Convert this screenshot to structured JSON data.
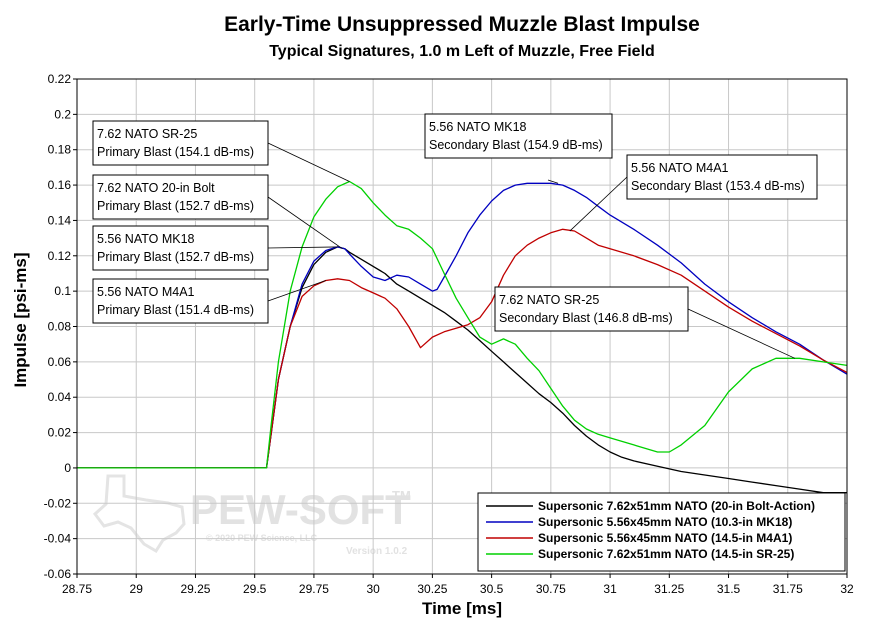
{
  "chart_data": {
    "type": "line",
    "title": "Early-Time Unsuppressed Muzzle Blast Impulse",
    "subtitle": "Typical Signatures, 1.0 m Left of Muzzle, Free Field",
    "xlabel": "Time [ms]",
    "ylabel": "Impulse [psi-ms]",
    "xlim": [
      28.75,
      32
    ],
    "ylim": [
      -0.06,
      0.22
    ],
    "x_ticks": [
      "28.75",
      "29",
      "29.25",
      "29.5",
      "29.75",
      "30",
      "30.25",
      "30.5",
      "30.75",
      "31",
      "31.25",
      "31.5",
      "31.75",
      "32"
    ],
    "y_ticks": [
      "0.22",
      "0.2",
      "0.18",
      "0.16",
      "0.14",
      "0.12",
      "0.1",
      "0.08",
      "0.06",
      "0.04",
      "0.02",
      "0",
      "-0.02",
      "-0.04",
      "-0.06"
    ],
    "grid": true,
    "legend_position": "bottom-right",
    "series": [
      {
        "name": "Supersonic 7.62x51mm NATO (20-in Bolt-Action)",
        "color": "#000000",
        "x": [
          28.75,
          29.55,
          29.57,
          29.6,
          29.65,
          29.7,
          29.75,
          29.8,
          29.85,
          29.88,
          29.9,
          29.95,
          30.0,
          30.05,
          30.1,
          30.15,
          30.2,
          30.25,
          30.3,
          30.35,
          30.4,
          30.45,
          30.5,
          30.55,
          30.6,
          30.65,
          30.7,
          30.75,
          30.8,
          30.85,
          30.9,
          30.95,
          31.0,
          31.05,
          31.1,
          31.2,
          31.3,
          31.4,
          31.5,
          31.6,
          31.7,
          31.8,
          31.9,
          32.0
        ],
        "y": [
          0,
          0,
          0.02,
          0.05,
          0.08,
          0.102,
          0.115,
          0.122,
          0.125,
          0.124,
          0.122,
          0.118,
          0.114,
          0.11,
          0.104,
          0.1,
          0.096,
          0.092,
          0.088,
          0.083,
          0.078,
          0.072,
          0.066,
          0.06,
          0.054,
          0.048,
          0.042,
          0.037,
          0.031,
          0.024,
          0.018,
          0.013,
          0.009,
          0.006,
          0.004,
          0.001,
          -0.002,
          -0.004,
          -0.006,
          -0.008,
          -0.01,
          -0.012,
          -0.014,
          -0.014
        ]
      },
      {
        "name": "Supersonic 5.56x45mm NATO (10.3-in MK18)",
        "color": "#0000c0",
        "x": [
          28.75,
          29.55,
          29.57,
          29.6,
          29.65,
          29.7,
          29.75,
          29.8,
          29.85,
          29.88,
          29.9,
          29.95,
          30.0,
          30.05,
          30.1,
          30.15,
          30.2,
          30.25,
          30.27,
          30.3,
          30.35,
          30.4,
          30.45,
          30.5,
          30.55,
          30.6,
          30.65,
          30.7,
          30.75,
          30.8,
          30.85,
          30.9,
          30.95,
          31.0,
          31.1,
          31.2,
          31.3,
          31.4,
          31.5,
          31.6,
          31.7,
          31.8,
          31.9,
          32.0
        ],
        "y": [
          0,
          0,
          0.02,
          0.05,
          0.08,
          0.104,
          0.117,
          0.123,
          0.125,
          0.124,
          0.121,
          0.114,
          0.108,
          0.106,
          0.109,
          0.108,
          0.104,
          0.1,
          0.101,
          0.108,
          0.12,
          0.133,
          0.143,
          0.151,
          0.157,
          0.16,
          0.161,
          0.161,
          0.161,
          0.16,
          0.157,
          0.153,
          0.148,
          0.143,
          0.135,
          0.126,
          0.116,
          0.104,
          0.094,
          0.085,
          0.077,
          0.07,
          0.061,
          0.053
        ]
      },
      {
        "name": "Supersonic 5.56x45mm NATO (14.5-in M4A1)",
        "color": "#c00000",
        "x": [
          28.75,
          29.55,
          29.57,
          29.6,
          29.65,
          29.7,
          29.75,
          29.8,
          29.85,
          29.9,
          29.95,
          30.0,
          30.05,
          30.1,
          30.15,
          30.2,
          30.25,
          30.3,
          30.35,
          30.4,
          30.45,
          30.5,
          30.55,
          30.6,
          30.65,
          30.7,
          30.75,
          30.8,
          30.85,
          30.9,
          30.95,
          31.0,
          31.1,
          31.2,
          31.3,
          31.4,
          31.5,
          31.6,
          31.7,
          31.8,
          31.9,
          32.0
        ],
        "y": [
          0,
          0,
          0.02,
          0.05,
          0.08,
          0.097,
          0.103,
          0.106,
          0.107,
          0.106,
          0.102,
          0.099,
          0.096,
          0.09,
          0.08,
          0.068,
          0.074,
          0.077,
          0.079,
          0.081,
          0.085,
          0.094,
          0.109,
          0.12,
          0.126,
          0.13,
          0.133,
          0.135,
          0.134,
          0.13,
          0.126,
          0.124,
          0.12,
          0.115,
          0.109,
          0.1,
          0.091,
          0.083,
          0.076,
          0.069,
          0.061,
          0.054
        ]
      },
      {
        "name": "Supersonic 7.62x51mm NATO (14.5-in SR-25)",
        "color": "#00d000",
        "x": [
          28.75,
          29.55,
          29.57,
          29.6,
          29.65,
          29.7,
          29.75,
          29.8,
          29.85,
          29.9,
          29.95,
          30.0,
          30.05,
          30.1,
          30.15,
          30.2,
          30.25,
          30.3,
          30.35,
          30.4,
          30.45,
          30.5,
          30.55,
          30.6,
          30.65,
          30.7,
          30.75,
          30.8,
          30.85,
          30.9,
          30.95,
          31.0,
          31.1,
          31.2,
          31.25,
          31.3,
          31.4,
          31.5,
          31.6,
          31.7,
          31.8,
          31.9,
          32.0
        ],
        "y": [
          0,
          0,
          0.025,
          0.06,
          0.1,
          0.125,
          0.142,
          0.152,
          0.159,
          0.162,
          0.158,
          0.15,
          0.143,
          0.137,
          0.135,
          0.13,
          0.124,
          0.11,
          0.096,
          0.085,
          0.074,
          0.07,
          0.073,
          0.07,
          0.062,
          0.055,
          0.045,
          0.035,
          0.027,
          0.022,
          0.019,
          0.017,
          0.013,
          0.009,
          0.009,
          0.013,
          0.024,
          0.043,
          0.056,
          0.062,
          0.062,
          0.06,
          0.058
        ]
      }
    ],
    "annotations": [
      {
        "lines": [
          "7.62 NATO SR-25",
          "Primary Blast (154.1 dB-ms)"
        ],
        "point": [
          29.9,
          0.162
        ]
      },
      {
        "lines": [
          "7.62 NATO 20-in Bolt",
          "Primary Blast (152.7 dB-ms)"
        ],
        "point": [
          29.87,
          0.124
        ]
      },
      {
        "lines": [
          "5.56 NATO MK18",
          "Primary Blast (152.7 dB-ms)"
        ],
        "point": [
          29.85,
          0.125
        ]
      },
      {
        "lines": [
          "5.56 NATO M4A1",
          "Primary Blast (151.4 dB-ms)"
        ],
        "point": [
          29.8,
          0.106
        ]
      },
      {
        "lines": [
          "5.56 NATO MK18",
          "Secondary Blast (154.9 dB-ms)"
        ],
        "point": [
          30.78,
          0.161
        ]
      },
      {
        "lines": [
          "5.56 NATO M4A1",
          "Secondary Blast (153.4 dB-ms)"
        ],
        "point": [
          30.83,
          0.134
        ]
      },
      {
        "lines": [
          "7.62 NATO SR-25",
          "Secondary Blast (146.8 dB-ms)"
        ],
        "point": [
          31.78,
          0.062
        ]
      }
    ]
  },
  "watermark": {
    "brand": "PEW-SOFT",
    "trademark": "TM",
    "copyright": "© 2020 PEW Science, LLC",
    "version": "Version 1.0.2"
  }
}
